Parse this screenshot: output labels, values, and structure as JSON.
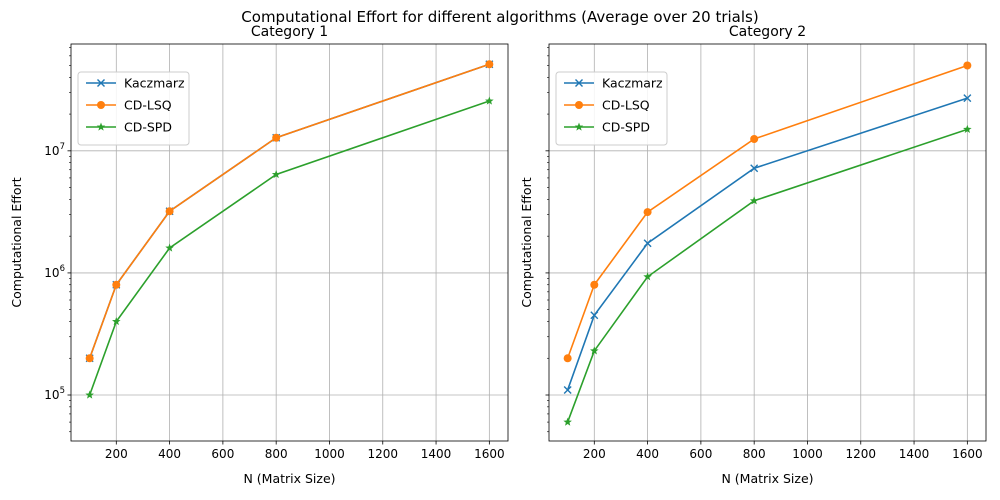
{
  "figure": {
    "suptitle": "Computational Effort for different algorithms (Average over 20 trials)"
  },
  "chart_data": [
    {
      "type": "line",
      "title": "Category 1",
      "xlabel": "N (Matrix Size)",
      "ylabel": "Computational Effort",
      "yscale": "log",
      "xlim": [
        30,
        1670
      ],
      "ylim": [
        42000,
        75000000
      ],
      "xticks": [
        200,
        400,
        600,
        800,
        1000,
        1200,
        1400,
        1600
      ],
      "yticks": [
        {
          "value": 100000,
          "base": "10",
          "exp": "5"
        },
        {
          "value": 1000000,
          "base": "10",
          "exp": "6"
        },
        {
          "value": 10000000,
          "base": "10",
          "exp": "7"
        }
      ],
      "grid": true,
      "legend_position": "upper-left",
      "x": [
        100,
        200,
        400,
        800,
        1600
      ],
      "series": [
        {
          "name": "Kaczmarz",
          "color": "#1f77b4",
          "marker": "x",
          "values": [
            200000,
            800000,
            3200000,
            12800000,
            51200000
          ]
        },
        {
          "name": "CD-LSQ",
          "color": "#ff7f0e",
          "marker": "o",
          "values": [
            200000,
            800000,
            3200000,
            12800000,
            51200000
          ]
        },
        {
          "name": "CD-SPD",
          "color": "#2ca02c",
          "marker": "*",
          "values": [
            100000,
            400000,
            1600000,
            6400000,
            25600000
          ]
        }
      ]
    },
    {
      "type": "line",
      "title": "Category 2",
      "xlabel": "N (Matrix Size)",
      "ylabel": "Computational Effort",
      "yscale": "log",
      "xlim": [
        30,
        1670
      ],
      "ylim": [
        42000,
        75000000
      ],
      "xticks": [
        200,
        400,
        600,
        800,
        1000,
        1200,
        1400,
        1600
      ],
      "yticks": [
        {
          "value": 100000,
          "base": "10",
          "exp": "5"
        },
        {
          "value": 1000000,
          "base": "10",
          "exp": "6"
        },
        {
          "value": 10000000,
          "base": "10",
          "exp": "7"
        }
      ],
      "grid": true,
      "legend_position": "upper-left",
      "x": [
        100,
        200,
        400,
        800,
        1600
      ],
      "series": [
        {
          "name": "Kaczmarz",
          "color": "#1f77b4",
          "marker": "x",
          "values": [
            110000,
            450000,
            1750000,
            7200000,
            27000000
          ]
        },
        {
          "name": "CD-LSQ",
          "color": "#ff7f0e",
          "marker": "o",
          "values": [
            200000,
            800000,
            3150000,
            12500000,
            50000000
          ]
        },
        {
          "name": "CD-SPD",
          "color": "#2ca02c",
          "marker": "*",
          "values": [
            60000,
            230000,
            930000,
            3900000,
            15000000
          ]
        }
      ]
    }
  ]
}
